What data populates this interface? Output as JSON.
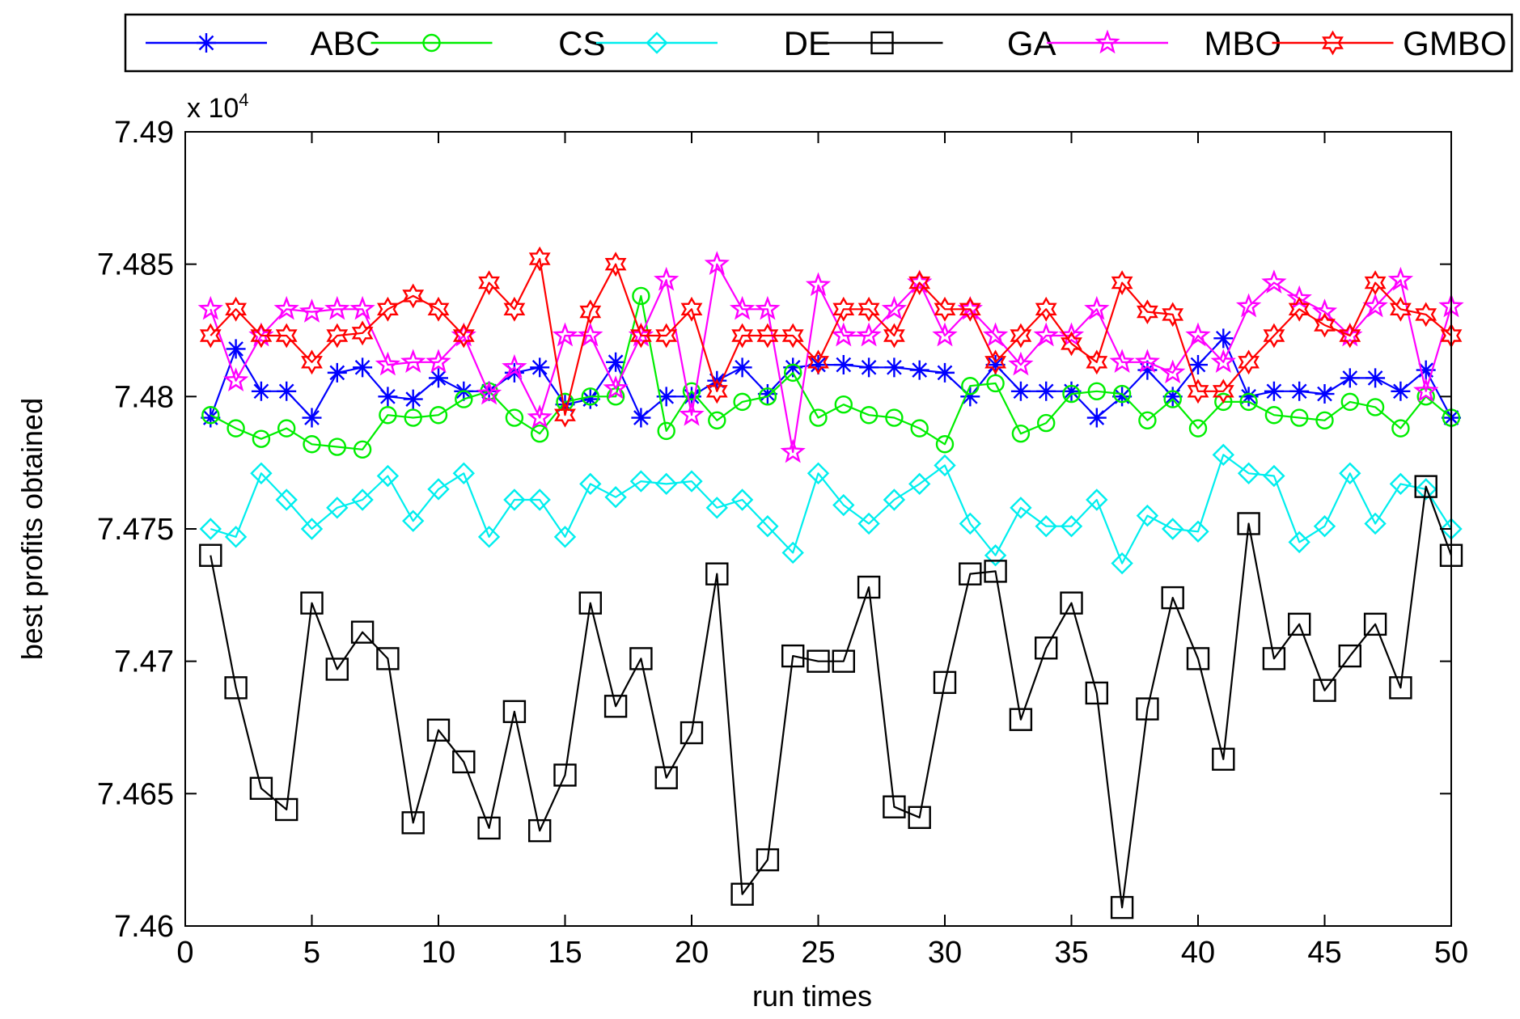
{
  "chart_data": {
    "type": "line",
    "title": "",
    "xlabel": "run times",
    "ylabel": "best profits obtained",
    "y_exponent_label": "x 10",
    "y_exponent_power": "4",
    "xlim": [
      0,
      50
    ],
    "ylim": [
      7.46,
      7.49
    ],
    "x_ticks": [
      0,
      5,
      10,
      15,
      20,
      25,
      30,
      35,
      40,
      45,
      50
    ],
    "x_tick_labels": [
      "0",
      "5",
      "10",
      "15",
      "20",
      "25",
      "30",
      "35",
      "40",
      "45",
      "50"
    ],
    "y_ticks": [
      7.46,
      7.465,
      7.47,
      7.475,
      7.48,
      7.485,
      7.49
    ],
    "y_tick_labels": [
      "7.46",
      "7.465",
      "7.47",
      "7.475",
      "7.48",
      "7.485",
      "7.49"
    ],
    "grid": false,
    "legend_position": "top (outside, horizontal)",
    "x": [
      1,
      2,
      3,
      4,
      5,
      6,
      7,
      8,
      9,
      10,
      11,
      12,
      13,
      14,
      15,
      16,
      17,
      18,
      19,
      20,
      21,
      22,
      23,
      24,
      25,
      26,
      27,
      28,
      29,
      30,
      31,
      32,
      33,
      34,
      35,
      36,
      37,
      38,
      39,
      40,
      41,
      42,
      43,
      44,
      45,
      46,
      47,
      48,
      49,
      50
    ],
    "series": [
      {
        "name": "ABC",
        "color": "#0000ff",
        "marker": "asterisk",
        "values": [
          7.4792,
          7.4818,
          7.4802,
          7.4802,
          7.4792,
          7.4809,
          7.4811,
          7.48,
          7.4799,
          7.4807,
          7.4802,
          7.4802,
          7.4809,
          7.4811,
          7.4797,
          7.4799,
          7.4813,
          7.4792,
          7.48,
          7.48,
          7.4806,
          7.4811,
          7.4801,
          7.4811,
          7.4812,
          7.4812,
          7.4811,
          7.4811,
          7.481,
          7.4809,
          7.48,
          7.4812,
          7.4802,
          7.4802,
          7.4802,
          7.4792,
          7.48,
          7.481,
          7.48,
          7.4812,
          7.4822,
          7.48,
          7.4802,
          7.4802,
          7.4801,
          7.4807,
          7.4807,
          7.4802,
          7.481,
          7.4792
        ]
      },
      {
        "name": "CS",
        "color": "#00ee00",
        "marker": "circle",
        "values": [
          7.4793,
          7.4788,
          7.4784,
          7.4788,
          7.4782,
          7.4781,
          7.478,
          7.4793,
          7.4792,
          7.4793,
          7.4799,
          7.4802,
          7.4792,
          7.4786,
          7.4798,
          7.48,
          7.48,
          7.4838,
          7.4787,
          7.4802,
          7.4791,
          7.4798,
          7.48,
          7.4809,
          7.4792,
          7.4797,
          7.4793,
          7.4792,
          7.4788,
          7.4782,
          7.4804,
          7.4805,
          7.4786,
          7.479,
          7.4801,
          7.4802,
          7.4801,
          7.4791,
          7.4799,
          7.4788,
          7.4798,
          7.4798,
          7.4793,
          7.4792,
          7.4791,
          7.4798,
          7.4796,
          7.4788,
          7.48,
          7.4792
        ]
      },
      {
        "name": "DE",
        "color": "#00eeee",
        "marker": "diamond",
        "values": [
          7.475,
          7.4747,
          7.4771,
          7.4761,
          7.475,
          7.4758,
          7.4761,
          7.477,
          7.4753,
          7.4765,
          7.4771,
          7.4747,
          7.4761,
          7.4761,
          7.4747,
          7.4767,
          7.4762,
          7.4768,
          7.4767,
          7.4768,
          7.4758,
          7.4761,
          7.4751,
          7.4741,
          7.4771,
          7.4759,
          7.4752,
          7.4761,
          7.4767,
          7.4774,
          7.4752,
          7.474,
          7.4758,
          7.4751,
          7.4751,
          7.4761,
          7.4737,
          7.4755,
          7.475,
          7.4749,
          7.4778,
          7.4771,
          7.477,
          7.4745,
          7.4751,
          7.4771,
          7.4752,
          7.4767,
          7.4765,
          7.475
        ]
      },
      {
        "name": "GA",
        "color": "#000000",
        "marker": "square",
        "values": [
          7.474,
          7.469,
          7.4652,
          7.4644,
          7.4722,
          7.4697,
          7.4711,
          7.4701,
          7.4639,
          7.4674,
          7.4662,
          7.4637,
          7.4681,
          7.4636,
          7.4657,
          7.4722,
          7.4683,
          7.4701,
          7.4656,
          7.4673,
          7.4733,
          7.4612,
          7.4625,
          7.4702,
          7.47,
          7.47,
          7.4728,
          7.4645,
          7.4641,
          7.4692,
          7.4733,
          7.4734,
          7.4678,
          7.4705,
          7.4722,
          7.4688,
          7.4607,
          7.4682,
          7.4724,
          7.4701,
          7.4663,
          7.4752,
          7.4701,
          7.4714,
          7.4689,
          7.4702,
          7.4714,
          7.469,
          7.4766,
          7.474
        ]
      },
      {
        "name": "MBO",
        "color": "#ff00ff",
        "marker": "pentagram",
        "values": [
          7.4833,
          7.4806,
          7.4823,
          7.4833,
          7.4832,
          7.4833,
          7.4833,
          7.4812,
          7.4813,
          7.4813,
          7.4823,
          7.4801,
          7.4811,
          7.4792,
          7.4823,
          7.4823,
          7.4803,
          7.4823,
          7.4844,
          7.4793,
          7.485,
          7.4833,
          7.4833,
          7.4779,
          7.4842,
          7.4823,
          7.4823,
          7.4833,
          7.4843,
          7.4823,
          7.4833,
          7.4823,
          7.4812,
          7.4823,
          7.4823,
          7.4833,
          7.4813,
          7.4813,
          7.4809,
          7.4823,
          7.4813,
          7.4834,
          7.4843,
          7.4837,
          7.4832,
          7.4823,
          7.4834,
          7.4844,
          7.4802,
          7.4834
        ]
      },
      {
        "name": "GMBO",
        "color": "#ff0000",
        "marker": "hexagram",
        "values": [
          7.4823,
          7.4833,
          7.4823,
          7.4823,
          7.4813,
          7.4823,
          7.4824,
          7.4833,
          7.4838,
          7.4833,
          7.4823,
          7.4843,
          7.4833,
          7.4852,
          7.4793,
          7.4832,
          7.485,
          7.4823,
          7.4823,
          7.4833,
          7.4802,
          7.4823,
          7.4823,
          7.4823,
          7.4813,
          7.4833,
          7.4833,
          7.4823,
          7.4843,
          7.4833,
          7.4833,
          7.4813,
          7.4823,
          7.4833,
          7.482,
          7.4813,
          7.4843,
          7.4832,
          7.4831,
          7.4802,
          7.4802,
          7.4813,
          7.4823,
          7.4833,
          7.4827,
          7.4823,
          7.4843,
          7.4833,
          7.4831,
          7.4823
        ]
      }
    ]
  }
}
